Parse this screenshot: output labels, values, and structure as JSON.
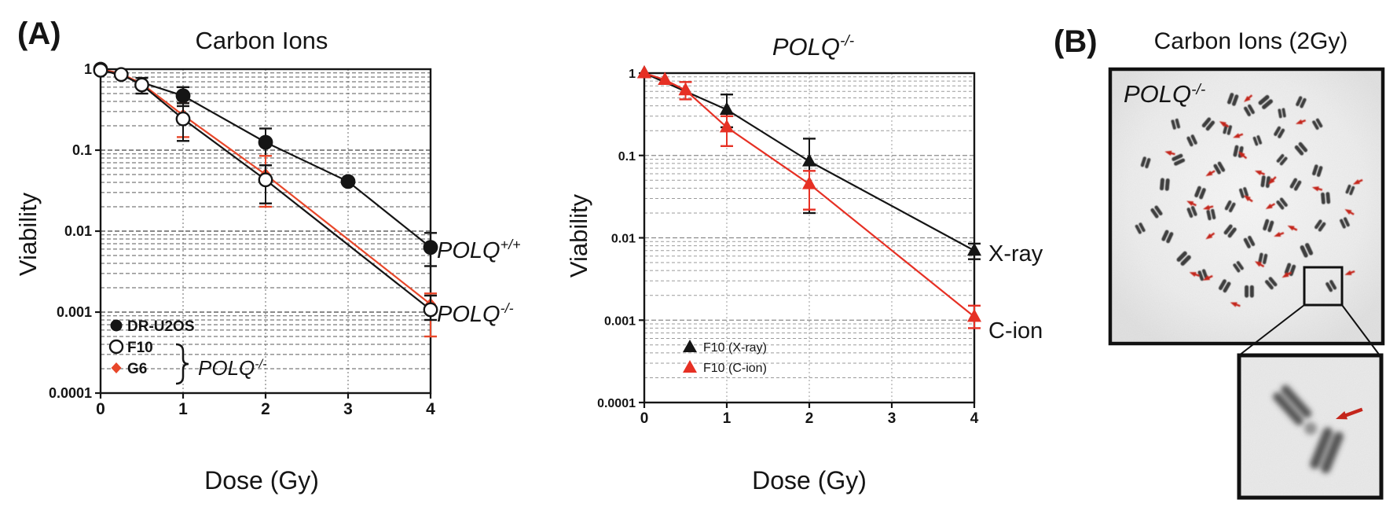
{
  "panel_a": {
    "label": "(A)"
  },
  "panel_b": {
    "label": "(B)",
    "title": "Carbon Ions (2Gy)",
    "genotype": {
      "base": "POLQ",
      "sup": "-/-"
    },
    "chromosomes": [
      [
        45,
        11,
        20,
        1
      ],
      [
        51,
        15,
        -30,
        0.9
      ],
      [
        57,
        12,
        50,
        1.1
      ],
      [
        63,
        16,
        -10,
        0.8
      ],
      [
        36,
        20,
        40,
        1
      ],
      [
        30,
        26,
        -25,
        0.9
      ],
      [
        43,
        22,
        15,
        0.85
      ],
      [
        25,
        33,
        65,
        1
      ],
      [
        20,
        42,
        5,
        1.05
      ],
      [
        17,
        52,
        -35,
        0.95
      ],
      [
        21,
        61,
        25,
        1
      ],
      [
        27,
        69,
        45,
        1.1
      ],
      [
        34,
        75,
        -20,
        0.9
      ],
      [
        42,
        79,
        30,
        1
      ],
      [
        51,
        81,
        0,
        1.05
      ],
      [
        59,
        78,
        -40,
        0.95
      ],
      [
        66,
        73,
        20,
        1
      ],
      [
        72,
        66,
        -25,
        1.1
      ],
      [
        77,
        57,
        35,
        0.9
      ],
      [
        79,
        47,
        -5,
        1
      ],
      [
        76,
        37,
        18,
        0.95
      ],
      [
        70,
        29,
        -40,
        1
      ],
      [
        62,
        23,
        30,
        0.9
      ],
      [
        54,
        26,
        -20,
        0.8
      ],
      [
        47,
        30,
        12,
        1
      ],
      [
        40,
        36,
        -30,
        0.95
      ],
      [
        33,
        45,
        22,
        1
      ],
      [
        37,
        53,
        -12,
        0.9
      ],
      [
        44,
        59,
        38,
        1
      ],
      [
        51,
        63,
        -28,
        0.95
      ],
      [
        58,
        57,
        18,
        1
      ],
      [
        63,
        49,
        -38,
        0.9
      ],
      [
        57,
        41,
        8,
        1
      ],
      [
        49,
        45,
        -18,
        0.85
      ],
      [
        44,
        50,
        28,
        0.9
      ],
      [
        68,
        42,
        30,
        0.95
      ],
      [
        24,
        20,
        -15,
        0.85
      ],
      [
        70,
        12,
        25,
        0.9
      ],
      [
        76,
        20,
        -30,
        0.85
      ],
      [
        13,
        34,
        18,
        0.9
      ],
      [
        11,
        58,
        -28,
        0.85
      ],
      [
        56,
        69,
        12,
        0.9
      ],
      [
        47,
        72,
        -35,
        0.85
      ],
      [
        88,
        44,
        22,
        0.8
      ],
      [
        86,
        56,
        -25,
        0.85
      ],
      [
        63,
        33,
        40,
        0.85
      ],
      [
        30,
        52,
        -22,
        0.9
      ],
      [
        81,
        79,
        -30,
        0.9
      ]
    ],
    "arrows": [
      [
        49,
        12,
        -40
      ],
      [
        40,
        19,
        30
      ],
      [
        45,
        25,
        -20
      ],
      [
        47,
        30,
        40
      ],
      [
        35,
        39,
        -30
      ],
      [
        53,
        37,
        20
      ],
      [
        58,
        42,
        -45
      ],
      [
        28,
        48,
        25
      ],
      [
        34,
        51,
        -15
      ],
      [
        49,
        46,
        35
      ],
      [
        57,
        51,
        -30
      ],
      [
        74,
        43,
        15
      ],
      [
        89,
        42,
        -25
      ],
      [
        86,
        51,
        30
      ],
      [
        60,
        61,
        -20
      ],
      [
        65,
        57,
        25
      ],
      [
        35,
        62,
        -35
      ],
      [
        29,
        74,
        20
      ],
      [
        34,
        77,
        -25
      ],
      [
        53,
        70,
        30
      ],
      [
        63,
        76,
        -30
      ],
      [
        44,
        85,
        20
      ],
      [
        20,
        30,
        15
      ],
      [
        68,
        20,
        -20
      ],
      [
        86,
        75,
        -20
      ]
    ]
  },
  "colors": {
    "black": "#151515",
    "g6_red": "#e8472a",
    "cion_red": "#e63024",
    "red_text": "#c81414",
    "arrow_red": "#c4251b"
  },
  "chart_data": [
    {
      "id": "carbon-ions",
      "type": "line",
      "title": "Carbon Ions",
      "xlabel": "Dose (Gy)",
      "ylabel": "Viability",
      "x_ticks": [
        "0",
        "1",
        "2",
        "3",
        "4"
      ],
      "y_ticks": [
        "1",
        "0.1",
        "0.01",
        "0.001",
        "0.0001"
      ],
      "xlim": [
        0,
        4
      ],
      "ylim_log": [
        1,
        0.0001
      ],
      "y_decades": 4,
      "grid": "dark",
      "series": [
        {
          "name": "DR-U2OS",
          "marker": "circle",
          "fill": "black",
          "color": "#151515",
          "points": [
            [
              0,
              1
            ],
            [
              1,
              0.47
            ],
            [
              2,
              0.125
            ],
            [
              3,
              0.041
            ],
            [
              4,
              0.0063
            ]
          ],
          "errors": [
            [
              1,
              0.35,
              0.6
            ],
            [
              2,
              0.065,
              0.185
            ],
            [
              4,
              0.0037,
              0.0095
            ]
          ]
        },
        {
          "name": "G6",
          "marker": "diamond",
          "fill": "red",
          "color": "#e8472a",
          "points": [
            [
              0,
              1
            ],
            [
              0.25,
              0.88
            ],
            [
              0.5,
              0.66
            ],
            [
              1,
              0.27
            ],
            [
              2,
              0.05
            ],
            [
              4,
              0.00125
            ]
          ],
          "errors": [
            [
              1,
              0.145,
              0.38
            ],
            [
              2,
              0.02,
              0.085
            ],
            [
              4,
              0.0005,
              0.0017
            ]
          ]
        },
        {
          "name": "F10",
          "marker": "circle",
          "fill": "white",
          "color": "#151515",
          "points": [
            [
              0,
              0.97
            ],
            [
              0.25,
              0.86
            ],
            [
              0.5,
              0.64
            ],
            [
              1,
              0.243
            ],
            [
              2,
              0.043
            ],
            [
              4,
              0.00107
            ]
          ],
          "errors": [
            [
              0.5,
              0.5,
              0.78
            ],
            [
              1,
              0.13,
              0.38
            ],
            [
              2,
              0.022,
              0.065
            ],
            [
              4,
              0.0008,
              0.0016
            ]
          ]
        }
      ],
      "legend": {
        "items": [
          {
            "label": "DR-U2OS"
          },
          {
            "label": "F10"
          },
          {
            "label": "G6"
          }
        ],
        "group_label": {
          "base": "POLQ",
          "sup": "-/-"
        }
      },
      "right_labels": [
        {
          "base": "POLQ",
          "sup": "+/+",
          "value": 0.0063,
          "color": "#151515"
        },
        {
          "base": "POLQ",
          "sup": "-/-",
          "value": 0.00107,
          "color": "#151515"
        }
      ]
    },
    {
      "id": "polq-ko",
      "type": "line",
      "title_italic": {
        "base": "POLQ",
        "sup": "-/-"
      },
      "xlabel": "Dose (Gy)",
      "ylabel": "Viability",
      "x_ticks": [
        "0",
        "1",
        "2",
        "3",
        "4"
      ],
      "y_ticks": [
        "1",
        "0.1",
        "0.01",
        "0.001",
        "0.0001"
      ],
      "xlim": [
        0,
        4
      ],
      "ylim_log": [
        1,
        0.0001
      ],
      "y_decades": 4,
      "grid": "light",
      "series": [
        {
          "name": "F10 (X-ray)",
          "marker": "triangle",
          "fill": "black",
          "color": "#151515",
          "points": [
            [
              0,
              1
            ],
            [
              1,
              0.36
            ],
            [
              2,
              0.085
            ],
            [
              4,
              0.007
            ]
          ],
          "errors": [
            [
              1,
              0.22,
              0.55
            ],
            [
              2,
              0.02,
              0.16
            ],
            [
              4,
              0.0055,
              0.0085
            ]
          ]
        },
        {
          "name": "F10 (C-ion)",
          "marker": "triangle",
          "fill": "red",
          "color": "#e63024",
          "points": [
            [
              0,
              1
            ],
            [
              0.25,
              0.83
            ],
            [
              0.5,
              0.62
            ],
            [
              1,
              0.22
            ],
            [
              2,
              0.045
            ],
            [
              4,
              0.0011
            ]
          ],
          "errors": [
            [
              0.5,
              0.48,
              0.78
            ],
            [
              1,
              0.13,
              0.3
            ],
            [
              2,
              0.022,
              0.065
            ],
            [
              4,
              0.0008,
              0.0015
            ]
          ]
        }
      ],
      "legend": {
        "items": [
          {
            "label": "F10 (X-ray)"
          },
          {
            "label": "F10 (C-ion)"
          }
        ]
      },
      "right_labels": [
        {
          "text": "X-ray",
          "value": 0.007,
          "color": "#151515"
        },
        {
          "text": "C-ion",
          "value": 0.0011,
          "color": "#c81414"
        }
      ]
    }
  ]
}
